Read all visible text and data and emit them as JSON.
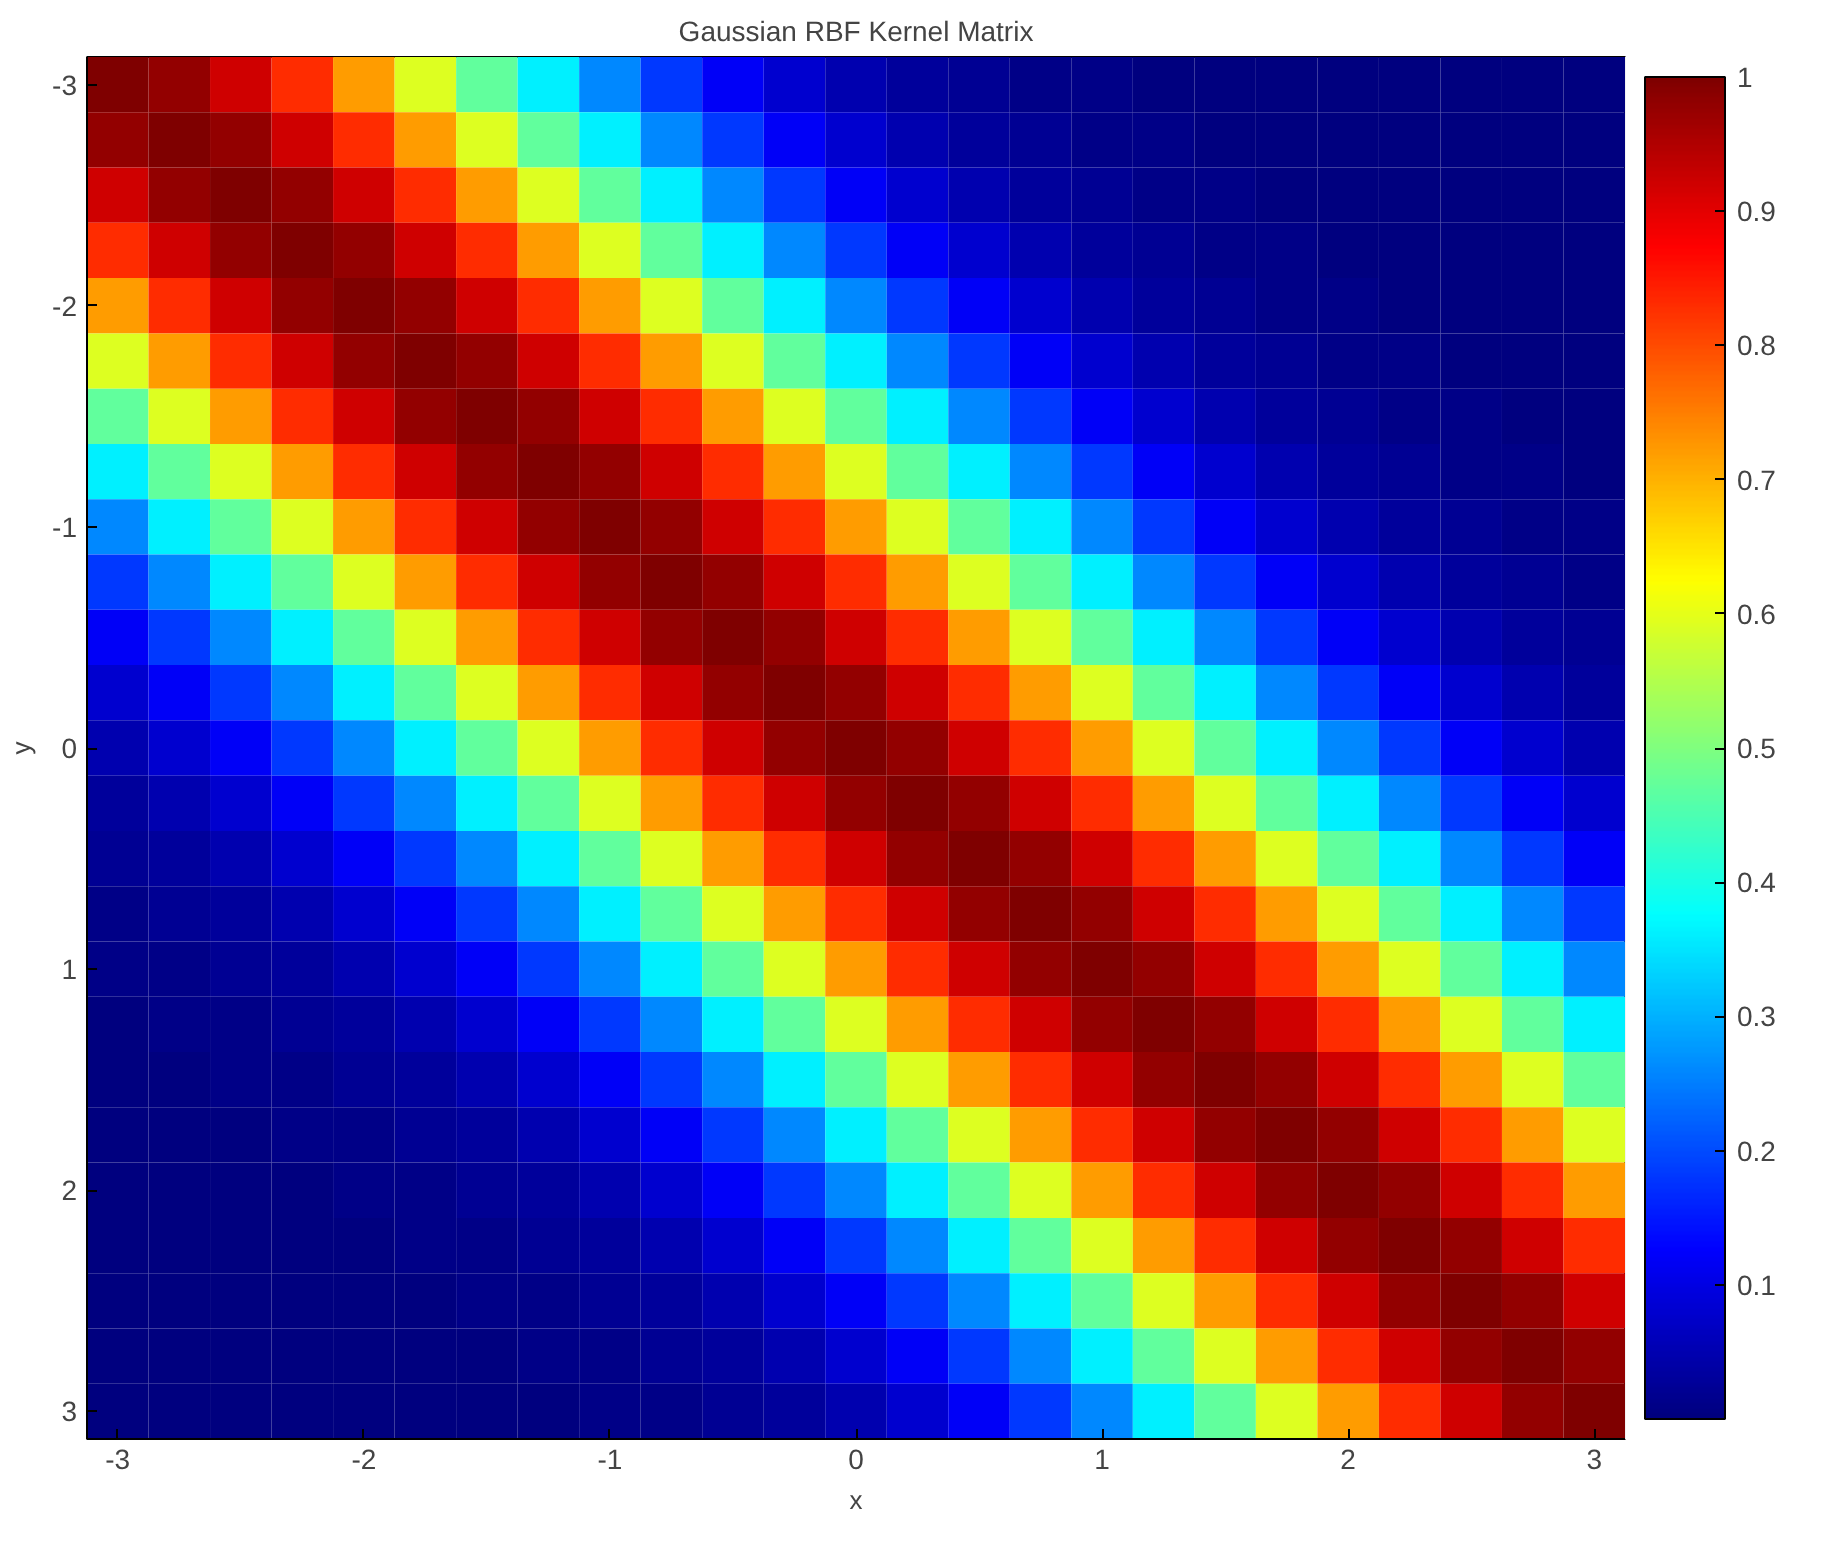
{
  "chart_data": {
    "type": "heatmap",
    "title": "Gaussian RBF Kernel Matrix",
    "xlabel": "x",
    "ylabel": "y",
    "categories": [
      "-3",
      null,
      null,
      null,
      "-2",
      null,
      null,
      null,
      "-1",
      null,
      null,
      null,
      "0",
      null,
      null,
      null,
      "1",
      null,
      null,
      null,
      "2",
      null,
      null,
      null,
      "3"
    ],
    "y_categories": [
      "-3",
      null,
      null,
      null,
      "-2",
      null,
      null,
      null,
      "-1",
      null,
      null,
      null,
      "0",
      null,
      null,
      null,
      "1",
      null,
      null,
      null,
      "2",
      null,
      null,
      null,
      "3"
    ],
    "clim": [
      0,
      1
    ],
    "cticks": [
      0.1,
      0.2,
      0.3,
      0.4,
      0.5,
      0.6,
      0.7,
      0.8,
      0.9,
      1
    ],
    "grid": false,
    "cells": [
      [
        1,
        0.98,
        0.92,
        0.83,
        0.72,
        0.59,
        0.47,
        0.36,
        0.26,
        0.18,
        0.12,
        0.08,
        0.05,
        0.03,
        0.02,
        0.01,
        0.01,
        0,
        0,
        0,
        0,
        0,
        0,
        0,
        0
      ],
      [
        0.98,
        1,
        0.98,
        0.92,
        0.83,
        0.72,
        0.59,
        0.47,
        0.36,
        0.26,
        0.18,
        0.12,
        0.08,
        0.05,
        0.03,
        0.02,
        0.01,
        0.01,
        0,
        0,
        0,
        0,
        0,
        0,
        0
      ],
      [
        0.92,
        0.98,
        1,
        0.98,
        0.92,
        0.83,
        0.72,
        0.59,
        0.47,
        0.36,
        0.26,
        0.18,
        0.12,
        0.08,
        0.05,
        0.03,
        0.02,
        0.01,
        0.01,
        0,
        0,
        0,
        0,
        0,
        0
      ],
      [
        0.83,
        0.92,
        0.98,
        1,
        0.98,
        0.92,
        0.83,
        0.72,
        0.59,
        0.47,
        0.36,
        0.26,
        0.18,
        0.12,
        0.08,
        0.05,
        0.03,
        0.02,
        0.01,
        0.01,
        0,
        0,
        0,
        0,
        0
      ],
      [
        0.72,
        0.83,
        0.92,
        0.98,
        1,
        0.98,
        0.92,
        0.83,
        0.72,
        0.59,
        0.47,
        0.36,
        0.26,
        0.18,
        0.12,
        0.08,
        0.05,
        0.03,
        0.02,
        0.01,
        0.01,
        0,
        0,
        0,
        0
      ],
      [
        0.59,
        0.72,
        0.83,
        0.92,
        0.98,
        1,
        0.98,
        0.92,
        0.83,
        0.72,
        0.59,
        0.47,
        0.36,
        0.26,
        0.18,
        0.12,
        0.08,
        0.05,
        0.03,
        0.02,
        0.01,
        0.01,
        0,
        0,
        0
      ],
      [
        0.47,
        0.59,
        0.72,
        0.83,
        0.92,
        0.98,
        1,
        0.98,
        0.92,
        0.83,
        0.72,
        0.59,
        0.47,
        0.36,
        0.26,
        0.18,
        0.12,
        0.08,
        0.05,
        0.03,
        0.02,
        0.01,
        0.01,
        0,
        0
      ],
      [
        0.36,
        0.47,
        0.59,
        0.72,
        0.83,
        0.92,
        0.98,
        1,
        0.98,
        0.92,
        0.83,
        0.72,
        0.59,
        0.47,
        0.36,
        0.26,
        0.18,
        0.12,
        0.08,
        0.05,
        0.03,
        0.02,
        0.01,
        0.01,
        0
      ],
      [
        0.26,
        0.36,
        0.47,
        0.59,
        0.72,
        0.83,
        0.92,
        0.98,
        1,
        0.98,
        0.92,
        0.83,
        0.72,
        0.59,
        0.47,
        0.36,
        0.26,
        0.18,
        0.12,
        0.08,
        0.05,
        0.03,
        0.02,
        0.01,
        0.01
      ],
      [
        0.18,
        0.26,
        0.36,
        0.47,
        0.59,
        0.72,
        0.83,
        0.92,
        0.98,
        1,
        0.98,
        0.92,
        0.83,
        0.72,
        0.59,
        0.47,
        0.36,
        0.26,
        0.18,
        0.12,
        0.08,
        0.05,
        0.03,
        0.02,
        0.01
      ],
      [
        0.12,
        0.18,
        0.26,
        0.36,
        0.47,
        0.59,
        0.72,
        0.83,
        0.92,
        0.98,
        1,
        0.98,
        0.92,
        0.83,
        0.72,
        0.59,
        0.47,
        0.36,
        0.26,
        0.18,
        0.12,
        0.08,
        0.05,
        0.03,
        0.02
      ],
      [
        0.08,
        0.12,
        0.18,
        0.26,
        0.36,
        0.47,
        0.59,
        0.72,
        0.83,
        0.92,
        0.98,
        1,
        0.98,
        0.92,
        0.83,
        0.72,
        0.59,
        0.47,
        0.36,
        0.26,
        0.18,
        0.12,
        0.08,
        0.05,
        0.03
      ],
      [
        0.05,
        0.08,
        0.12,
        0.18,
        0.26,
        0.36,
        0.47,
        0.59,
        0.72,
        0.83,
        0.92,
        0.98,
        1,
        0.98,
        0.92,
        0.83,
        0.72,
        0.59,
        0.47,
        0.36,
        0.26,
        0.18,
        0.12,
        0.08,
        0.05
      ],
      [
        0.03,
        0.05,
        0.08,
        0.12,
        0.18,
        0.26,
        0.36,
        0.47,
        0.59,
        0.72,
        0.83,
        0.92,
        0.98,
        1,
        0.98,
        0.92,
        0.83,
        0.72,
        0.59,
        0.47,
        0.36,
        0.26,
        0.18,
        0.12,
        0.08
      ],
      [
        0.02,
        0.03,
        0.05,
        0.08,
        0.12,
        0.18,
        0.26,
        0.36,
        0.47,
        0.59,
        0.72,
        0.83,
        0.92,
        0.98,
        1,
        0.98,
        0.92,
        0.83,
        0.72,
        0.59,
        0.47,
        0.36,
        0.26,
        0.18,
        0.12
      ],
      [
        0.01,
        0.02,
        0.03,
        0.05,
        0.08,
        0.12,
        0.18,
        0.26,
        0.36,
        0.47,
        0.59,
        0.72,
        0.83,
        0.92,
        0.98,
        1,
        0.98,
        0.92,
        0.83,
        0.72,
        0.59,
        0.47,
        0.36,
        0.26,
        0.18
      ],
      [
        0.01,
        0.01,
        0.02,
        0.03,
        0.05,
        0.08,
        0.12,
        0.18,
        0.26,
        0.36,
        0.47,
        0.59,
        0.72,
        0.83,
        0.92,
        0.98,
        1,
        0.98,
        0.92,
        0.83,
        0.72,
        0.59,
        0.47,
        0.36,
        0.26
      ],
      [
        0,
        0.01,
        0.01,
        0.02,
        0.03,
        0.05,
        0.08,
        0.12,
        0.18,
        0.26,
        0.36,
        0.47,
        0.59,
        0.72,
        0.83,
        0.92,
        0.98,
        1,
        0.98,
        0.92,
        0.83,
        0.72,
        0.59,
        0.47,
        0.36
      ],
      [
        0,
        0,
        0.01,
        0.01,
        0.02,
        0.03,
        0.05,
        0.08,
        0.12,
        0.18,
        0.26,
        0.36,
        0.47,
        0.59,
        0.72,
        0.83,
        0.92,
        0.98,
        1,
        0.98,
        0.92,
        0.83,
        0.72,
        0.59,
        0.47
      ],
      [
        0,
        0,
        0,
        0.01,
        0.01,
        0.02,
        0.03,
        0.05,
        0.08,
        0.12,
        0.18,
        0.26,
        0.36,
        0.47,
        0.59,
        0.72,
        0.83,
        0.92,
        0.98,
        1,
        0.98,
        0.92,
        0.83,
        0.72,
        0.59
      ],
      [
        0,
        0,
        0,
        0,
        0.01,
        0.01,
        0.02,
        0.03,
        0.05,
        0.08,
        0.12,
        0.18,
        0.26,
        0.36,
        0.47,
        0.59,
        0.72,
        0.83,
        0.92,
        0.98,
        1,
        0.98,
        0.92,
        0.83,
        0.72
      ],
      [
        0,
        0,
        0,
        0,
        0,
        0.01,
        0.01,
        0.02,
        0.03,
        0.05,
        0.08,
        0.12,
        0.18,
        0.26,
        0.36,
        0.47,
        0.59,
        0.72,
        0.83,
        0.92,
        0.98,
        1,
        0.98,
        0.92,
        0.83
      ],
      [
        0,
        0,
        0,
        0,
        0,
        0,
        0.01,
        0.01,
        0.02,
        0.03,
        0.05,
        0.08,
        0.12,
        0.18,
        0.26,
        0.36,
        0.47,
        0.59,
        0.72,
        0.83,
        0.92,
        0.98,
        1,
        0.98,
        0.92
      ],
      [
        0,
        0,
        0,
        0,
        0,
        0,
        0,
        0.01,
        0.01,
        0.02,
        0.03,
        0.05,
        0.08,
        0.12,
        0.18,
        0.26,
        0.36,
        0.47,
        0.59,
        0.72,
        0.83,
        0.92,
        0.98,
        1,
        0.98
      ],
      [
        0,
        0,
        0,
        0,
        0,
        0,
        0,
        0,
        0.01,
        0.01,
        0.02,
        0.03,
        0.05,
        0.08,
        0.12,
        0.18,
        0.26,
        0.36,
        0.47,
        0.59,
        0.72,
        0.83,
        0.92,
        0.98,
        1
      ]
    ]
  }
}
